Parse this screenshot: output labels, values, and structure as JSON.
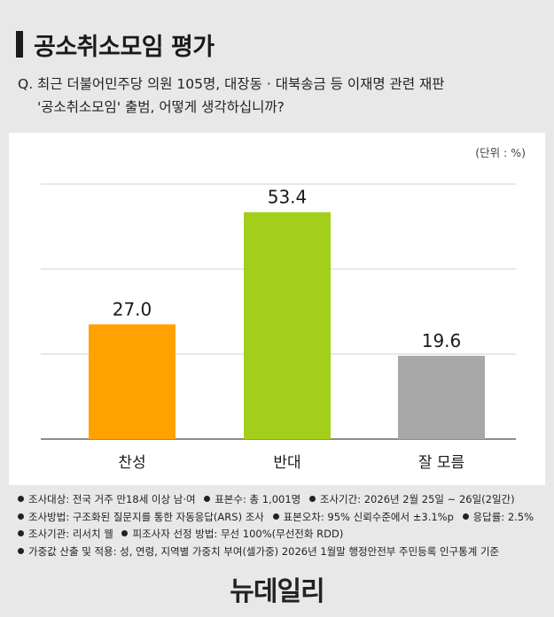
{
  "header": {
    "title": "공소취소모임 평가",
    "question_line1": "Q. 최근 더불어민주당 의원 105명, 대장동 · 대북송금 등 이재명 관련 재판",
    "question_line2": "'공소취소모임' 출범, 어떻게 생각하십니까?"
  },
  "unit_label": "(단위 : %)",
  "chart_data": {
    "type": "bar",
    "categories": [
      "찬성",
      "반대",
      "잘 모름"
    ],
    "values": [
      27.0,
      53.4,
      19.6
    ],
    "value_labels": [
      "27.0",
      "53.4",
      "19.6"
    ],
    "colors": [
      "#FFA200",
      "#A3CF1A",
      "#A8A8A8"
    ],
    "ylim": [
      0,
      60
    ],
    "grid": true
  },
  "footer": {
    "row1": [
      "조사대상: 전국 거주 만18세 이상 남·여",
      "표본수: 총 1,001명",
      "조사기간: 2026년 2월 25일 ~ 26일(2일간)"
    ],
    "row2": [
      "조사방법: 구조화된 질문지를 통한 자동응답(ARS) 조사",
      "표본오차: 95% 신뢰수준에서 ±3.1%p",
      "응답률: 2.5%"
    ],
    "row3": [
      "조사기관: 리서치 웰",
      "피조사자 선정 방법: 무선 100%(무선전화 RDD)"
    ],
    "row4": [
      "가중값 산출 및 적용: 성, 연령, 지역별 가중치 부여(셀가중) 2026년 1월말 행정안전부 주민등록 인구통계 기준"
    ]
  },
  "logo": "뉴데일리"
}
